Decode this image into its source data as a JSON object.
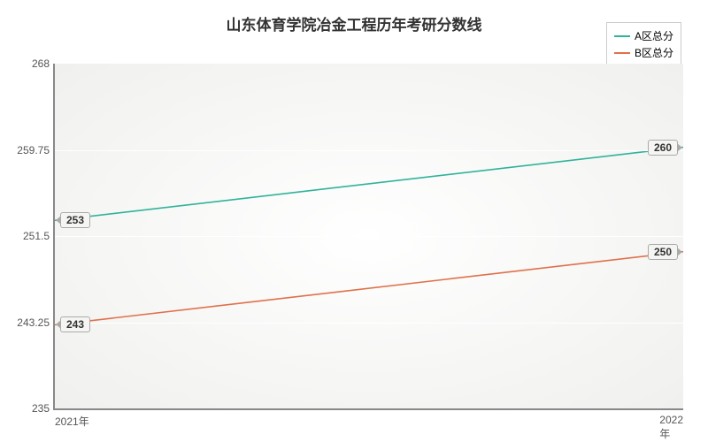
{
  "chart": {
    "type": "line",
    "title": "山东体育学院冶金工程历年考研分数线",
    "title_fontsize": 17,
    "title_color": "#333333",
    "background_color": "#ffffff",
    "plot_bg_inner": "#ffffff",
    "plot_bg_outer": "#f0f0ee",
    "axis_color": "#888888",
    "grid_color": "#ffffff",
    "label_color": "#555555",
    "label_fontsize": 12,
    "x": {
      "categories": [
        "2021年",
        "2022年"
      ]
    },
    "y": {
      "min": 235,
      "max": 268,
      "ticks": [
        235,
        243.25,
        251.5,
        259.75,
        268
      ]
    },
    "series": [
      {
        "name": "A区总分",
        "color": "#2fb39a",
        "line_width": 1.6,
        "values": [
          253,
          260
        ],
        "labels": [
          "253",
          "260"
        ]
      },
      {
        "name": "B区总分",
        "color": "#e0704a",
        "line_width": 1.6,
        "values": [
          243,
          250
        ],
        "labels": [
          "243",
          "250"
        ]
      }
    ],
    "legend": {
      "border_color": "#cccccc",
      "bg_color": "#ffffff",
      "fontsize": 12
    }
  }
}
